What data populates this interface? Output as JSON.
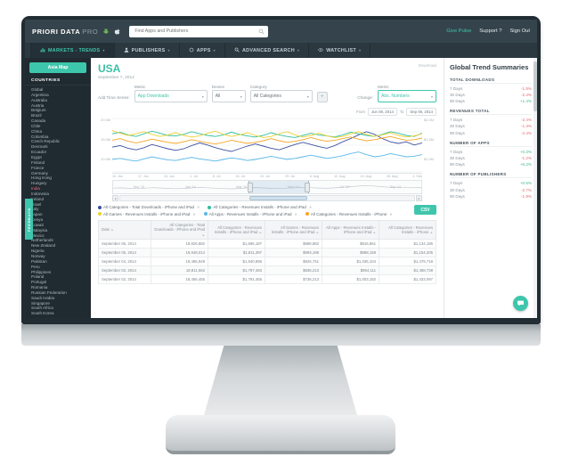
{
  "topbar": {
    "logo_main": "PRIORI DATA",
    "logo_suffix": "PRO",
    "search_placeholder": "Find Apps and Publishers",
    "links": [
      {
        "name": "pulse-link",
        "label": "Give Pulse",
        "accent": true
      },
      {
        "name": "support-link",
        "label": "Support ?",
        "accent": false
      },
      {
        "name": "signout-link",
        "label": "Sign Out",
        "accent": false
      }
    ]
  },
  "nav": {
    "tabs": [
      {
        "label": "MARKETS - TRENDS",
        "icon": "bar-chart-icon",
        "active": true
      },
      {
        "label": "PUBLISHERS",
        "icon": "person-icon",
        "active": false
      },
      {
        "label": "APPS",
        "icon": "apps-icon",
        "active": false
      },
      {
        "label": "ADVANCED SEARCH",
        "icon": "search-icon",
        "active": false
      },
      {
        "label": "WATCHLIST",
        "icon": "watchlist-icon",
        "active": false
      }
    ]
  },
  "sidebar": {
    "button_label": "Asia Map",
    "heading": "COUNTRIES",
    "feedback_label": "FEEDBACK",
    "highlight": "India",
    "countries": [
      "Global",
      "Argentina",
      "Australia",
      "Austria",
      "Belgium",
      "Brazil",
      "Canada",
      "Chile",
      "China",
      "Colombia",
      "Czech Republic",
      "Denmark",
      "Ecuador",
      "Egypt",
      "Finland",
      "France",
      "Germany",
      "Hong Kong",
      "Hungary",
      "India",
      "Indonesia",
      "Ireland",
      "Israel",
      "Italy",
      "Japan",
      "Kenya",
      "Kuwait",
      "Malaysia",
      "Mexico",
      "Netherlands",
      "New Zealand",
      "Nigeria",
      "Norway",
      "Pakistan",
      "Peru",
      "Philippines",
      "Poland",
      "Portugal",
      "Romania",
      "Russian Federation",
      "Saudi Arabia",
      "Singapore",
      "South Africa",
      "South Korea"
    ]
  },
  "page": {
    "title": "USA",
    "date": "September 7, 2014",
    "download_label": "Download"
  },
  "filters": {
    "add_label": "Add Time Series:",
    "metric_label": "Metric",
    "metric_value": "App Downloads",
    "device_label": "Device",
    "device_value": "All",
    "category_label": "Category",
    "category_value": "All Categories",
    "add_button": "+",
    "change_label": "Change:",
    "change_metric_label": "Metric",
    "change_value": "Abs. Numbers"
  },
  "chart_data": {
    "type": "line",
    "from_label": "From",
    "from_value": "Jun 08, 2014",
    "to_label": "To",
    "to_value": "Sep 06, 2014",
    "y_axis_left_ticks": [
      "20.0M",
      "15.0M",
      "10.0M"
    ],
    "y_axis_right_ticks": [
      "$2.0M",
      "$1.5M",
      "$1.0M"
    ],
    "x_ticks": [
      "10. Jun",
      "17. Jun",
      "24. Jun",
      "1. Jul",
      "8. Jul",
      "15. Jul",
      "22. Jul",
      "29. Jul",
      "5. Aug",
      "12. Aug",
      "19. Aug",
      "26. Aug",
      "2. Sep"
    ],
    "navigator_labels": [
      "Nov '13",
      "Jan '14",
      "Mar '14",
      "May '14",
      "Jul '14",
      "Sep '14"
    ],
    "series": [
      {
        "name": "All Categories - Total Downloads - iPhone and iPad",
        "color": "#3b4fa0",
        "values": [
          48,
          51,
          46,
          43,
          47,
          53,
          49,
          45,
          42,
          45,
          51,
          56,
          52,
          47,
          43,
          40,
          45,
          50,
          54,
          50,
          46,
          43,
          48,
          53,
          57,
          53,
          49,
          46,
          51,
          58,
          64,
          71,
          77,
          72,
          64,
          58,
          55,
          58,
          52,
          56
        ]
      },
      {
        "name": "All Categories - Revenues Installs - iPhone and iPad",
        "color": "#2fbfa0",
        "values": [
          73,
          76,
          71,
          68,
          73,
          78,
          74,
          70,
          69,
          72,
          77,
          73,
          70,
          68,
          71,
          76,
          72,
          69,
          67,
          70,
          75,
          71,
          68,
          66,
          70,
          74,
          71,
          69,
          67,
          71,
          76,
          73,
          70,
          68,
          72,
          77,
          74,
          70,
          68,
          74
        ]
      },
      {
        "name": "All Games - Revenues Installs - iPhone and iPad",
        "color": "#ecd12f",
        "values": [
          79,
          74,
          70,
          73,
          77,
          72,
          68,
          71,
          75,
          70,
          67,
          69,
          74,
          78,
          72,
          68,
          71,
          75,
          70,
          66,
          68,
          73,
          77,
          71,
          67,
          70,
          74,
          69,
          66,
          68,
          73,
          77,
          72,
          68,
          71,
          75,
          70,
          67,
          69,
          73
        ]
      },
      {
        "name": "All Apps - Revenues Installs - iPhone and iPad",
        "color": "#58b8e8",
        "values": [
          25,
          27,
          24,
          22,
          26,
          30,
          27,
          24,
          23,
          26,
          29,
          26,
          24,
          22,
          25,
          28,
          26,
          23,
          25,
          28,
          31,
          28,
          25,
          27,
          30,
          33,
          30,
          27,
          29,
          32,
          36,
          39,
          34,
          30,
          32,
          36,
          33,
          30,
          31,
          34
        ]
      },
      {
        "name": "All Categories - Revenues Installs - iPhone",
        "color": "#f5a623",
        "values": [
          61,
          64,
          59,
          56,
          59,
          63,
          60,
          57,
          55,
          58,
          62,
          59,
          56,
          54,
          57,
          61,
          58,
          55,
          57,
          60,
          64,
          60,
          57,
          59,
          62,
          66,
          62,
          59,
          61,
          64,
          67,
          63,
          60,
          62,
          65,
          68,
          64,
          61,
          62,
          65
        ]
      }
    ]
  },
  "legend": {
    "export_label": "CSV",
    "items": [
      {
        "label": "All Categories - Total Downloads - iPhone and iPad",
        "color": "#3b4fa0"
      },
      {
        "label": "All Categories - Revenues Installs - iPhone and iPad",
        "color": "#2fbfa0"
      },
      {
        "label": "All Games - Revenues Installs - iPhone and iPad",
        "color": "#ecd12f"
      },
      {
        "label": "All Apps - Revenues Installs - iPhone and iPad",
        "color": "#58b8e8"
      },
      {
        "label": "All Categories - Revenues Installs - iPhone",
        "color": "#f5a623"
      }
    ]
  },
  "table": {
    "columns": [
      "Date",
      "All Categories - Total Downloads - iPhone and iPad",
      "All Categories - Revenues Installs - iPhone and iPad",
      "All Games - Revenues Installs - iPhone and iPad",
      "All Apps - Revenues Installs - iPhone and iPad",
      "All Categories - Revenues Installs - iPhone"
    ],
    "rows": [
      [
        "September 06, 2014",
        "18,826,882",
        "$1,696,187",
        "$988,882",
        "$916,861",
        "$1,134,186"
      ],
      [
        "September 05, 2014",
        "18,948,014",
        "$1,811,397",
        "$993,198",
        "$988,159",
        "$1,154,205"
      ],
      [
        "September 04, 2014",
        "19,496,949",
        "$1,940,896",
        "$926,751",
        "$1,036,104",
        "$1,479,718"
      ],
      [
        "September 03, 2014",
        "18,811,562",
        "$1,797,483",
        "$836,213",
        "$954,111",
        "$1,488,738"
      ],
      [
        "September 02, 2014",
        "18,456,455",
        "$1,791,455",
        "$736,213",
        "$1,003,182",
        "$1,433,097"
      ]
    ]
  },
  "summaries": {
    "title": "Global Trend Summaries",
    "sections": [
      {
        "title": "TOTAL DOWNLOADS",
        "rows": [
          {
            "label": "7 Days",
            "value": "-1.8%",
            "dir": "down"
          },
          {
            "label": "30 Days",
            "value": "-2.4%",
            "dir": "down"
          },
          {
            "label": "90 Days",
            "value": "+1.4%",
            "dir": "up"
          }
        ]
      },
      {
        "title": "REVENUES TOTAL",
        "rows": [
          {
            "label": "7 Days",
            "value": "-2.4%",
            "dir": "down"
          },
          {
            "label": "30 Days",
            "value": "-1.3%",
            "dir": "down"
          },
          {
            "label": "90 Days",
            "value": "-2.4%",
            "dir": "down"
          }
        ]
      },
      {
        "title": "NUMBER OF APPS",
        "rows": [
          {
            "label": "7 Days",
            "value": "+0.3%",
            "dir": "up"
          },
          {
            "label": "30 Days",
            "value": "-1.2%",
            "dir": "down"
          },
          {
            "label": "90 Days",
            "value": "+5.2%",
            "dir": "up"
          }
        ]
      },
      {
        "title": "NUMBER OF PUBLISHERS",
        "rows": [
          {
            "label": "7 Days",
            "value": "+0.5%",
            "dir": "up"
          },
          {
            "label": "30 Days",
            "value": "-2.7%",
            "dir": "down"
          },
          {
            "label": "90 Days",
            "value": "-1.9%",
            "dir": "down"
          }
        ]
      }
    ]
  }
}
